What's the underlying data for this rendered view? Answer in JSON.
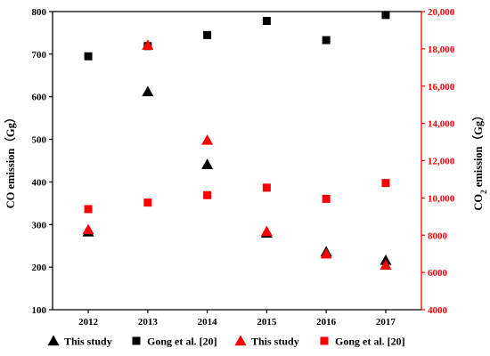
{
  "colors": {
    "black": "#000000",
    "red": "#ff0000"
  },
  "chart_data": {
    "type": "scatter",
    "title": "",
    "x": [
      2012,
      2013,
      2014,
      2015,
      2016,
      2017
    ],
    "xlim": [
      2011.4,
      2017.6
    ],
    "xticks": [
      "2012",
      "2013",
      "2014",
      "2015",
      "2016",
      "2017"
    ],
    "grid": false,
    "legend_position": "bottom",
    "y_left": {
      "label_main": "CO emission",
      "label_unit": "（Gg）",
      "ylim": [
        100,
        800
      ],
      "ticks": [
        "100",
        "200",
        "300",
        "400",
        "500",
        "600",
        "700",
        "800"
      ]
    },
    "y_right": {
      "label_pre": "CO",
      "label_sub": "2",
      "label_post": " emission（Gg）",
      "ylim": [
        4000,
        20000
      ],
      "ticks": [
        "4000",
        "6000",
        "8000",
        "10,000",
        "12,000",
        "14,000",
        "16,000",
        "18,000",
        "20,000"
      ],
      "tick_values": [
        4000,
        6000,
        8000,
        10000,
        12000,
        14000,
        16000,
        18000,
        20000
      ]
    },
    "series": [
      {
        "name": "This study",
        "axis": "left",
        "marker": "triangle",
        "color": "#000000",
        "values": [
          283,
          612,
          441,
          280,
          236,
          216
        ]
      },
      {
        "name": "Gong et al. [20]",
        "axis": "left",
        "marker": "square",
        "color": "#000000",
        "values": [
          695,
          719,
          745,
          778,
          733,
          792
        ]
      },
      {
        "name": "This study",
        "axis": "right",
        "marker": "triangle",
        "color": "#ff0000",
        "values": [
          8300,
          18200,
          13100,
          8200,
          7000,
          6400
        ]
      },
      {
        "name": "Gong et al. [20]",
        "axis": "right",
        "marker": "square",
        "color": "#ff0000",
        "values": [
          9400,
          9750,
          10150,
          10550,
          9950,
          10800
        ]
      }
    ]
  }
}
